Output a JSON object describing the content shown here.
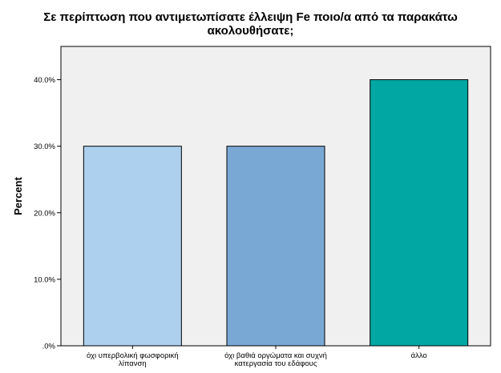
{
  "chart_data": {
    "type": "bar",
    "title_lines": [
      "Σε περίπτωση που αντιμετωπίσατε έλλειψη Fe ποιο/α από τα παρακάτω",
      "ακολουθήσατε;"
    ],
    "ylabel": "Percent",
    "xlabel": "",
    "ylim": [
      0,
      45
    ],
    "yticks": [
      0,
      10,
      20,
      30,
      40
    ],
    "ytick_labels": [
      ".0%",
      "10.0%",
      "20.0%",
      "30.0%",
      "40.0%"
    ],
    "categories": [
      [
        "όχι υπερβολική φωσφορική",
        "λίπανση"
      ],
      [
        "όχι βαθιά οργώματα και συχνή",
        "κατεργασία του εδάφους"
      ],
      [
        "άλλο"
      ]
    ],
    "values": [
      30,
      30,
      40
    ],
    "bar_colors": [
      "#acd0ee",
      "#7aa8d5",
      "#00a7a3"
    ],
    "background_color": "#f0f0f0",
    "grid": false,
    "legend": "none"
  }
}
